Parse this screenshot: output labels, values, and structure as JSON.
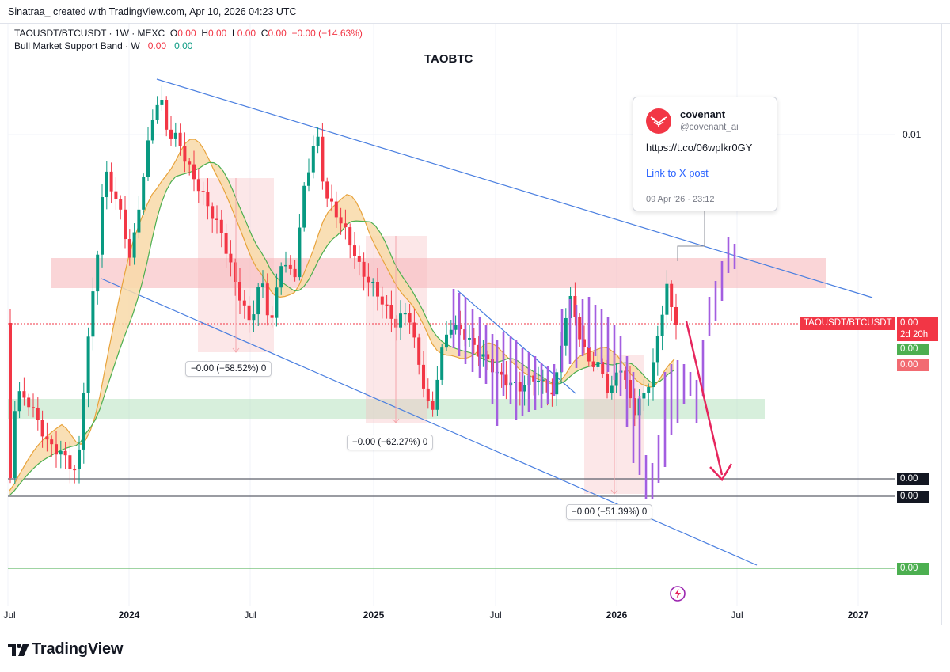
{
  "header": {
    "credit": "Sinatraa_ created with TradingView.com, Apr 10, 2026 04:23 UTC"
  },
  "legend": {
    "symbol": "TAOUSDT/BTCUSDT · 1W · MEXC",
    "o_label": "O",
    "o_val": "0.00",
    "h_label": "H",
    "h_val": "0.00",
    "l_label": "L",
    "l_val": "0.00",
    "c_label": "C",
    "c_val": "0.00",
    "change": "−0.00 (−14.63%)",
    "indicator": "Bull Market Support Band · W",
    "ind_val1": "0.00",
    "ind_val2": "0.00"
  },
  "tweet": {
    "name": "covenant",
    "handle": "@covenant_ai",
    "text": "https://t.co/06wplkr0GY",
    "link": "Link to X post",
    "time": "09 Apr '26 · 23:12"
  },
  "price_labels": {
    "symbol_tag": "TAOUSDT/BTCUSDT",
    "last_price": "0.00",
    "countdown": "2d 20h",
    "band_green": "0.00",
    "band_red": "0.00",
    "line1": "0.00",
    "line2": "0.00",
    "line_green": "0.00"
  },
  "measure_labels": {
    "m1": "−0.00 (−58.52%) 0",
    "m2": "−0.00 (−62.27%) 0",
    "m3": "−0.00 (−51.39%) 0"
  },
  "brand": {
    "text": "TradingView"
  },
  "colors": {
    "up": "#089981",
    "down": "#f23645",
    "projection": "#a35ee0",
    "trendline": "#4a7fe0",
    "band_fast": "#e8a33c",
    "band_slow": "#4caf50"
  },
  "chart_data": {
    "type": "candlestick",
    "title": "TAOBTC",
    "timeframe": "1W",
    "x_ticks": [
      "Jul",
      "2024",
      "Jul",
      "2025",
      "Jul",
      "2026",
      "Jul",
      "2027"
    ],
    "y_ticks": [
      "0.01"
    ],
    "x_range_months": [
      0,
      54
    ],
    "annotations": {
      "resistance_zone": "red horizontal zone",
      "support_zone": "green horizontal zone",
      "descending_channel": "blue parallel trendlines",
      "projection": "purple projected bars",
      "down_arrow": "pink arrow toward lower horizontal line"
    }
  }
}
